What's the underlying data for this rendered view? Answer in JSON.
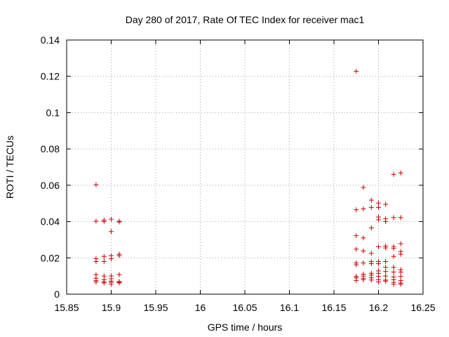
{
  "chart_data": {
    "type": "scatter",
    "title": "Day 280 of 2017, Rate Of TEC Index for receiver mac1",
    "xlabel": "GPS time / hours",
    "ylabel": "ROTI / TECUs",
    "xlim": [
      15.85,
      16.25
    ],
    "ylim": [
      0,
      0.14
    ],
    "x_ticks": [
      "15.85",
      "15.9",
      "15.95",
      "16",
      "16.05",
      "16.1",
      "16.15",
      "16.2",
      "16.25"
    ],
    "y_ticks": [
      "0",
      "0.02",
      "0.04",
      "0.06",
      "0.08",
      "0.1",
      "0.12",
      "0.14"
    ],
    "grid": true,
    "marker": "+",
    "color": "#cc0000",
    "series": [
      {
        "name": "ROTI",
        "points": [
          [
            15.883,
            0.0603
          ],
          [
            15.883,
            0.0402
          ],
          [
            15.883,
            0.0195
          ],
          [
            15.883,
            0.018
          ],
          [
            15.883,
            0.0107
          ],
          [
            15.883,
            0.0088
          ],
          [
            15.883,
            0.0075
          ],
          [
            15.883,
            0.0067
          ],
          [
            15.892,
            0.0408
          ],
          [
            15.892,
            0.04
          ],
          [
            15.892,
            0.0208
          ],
          [
            15.892,
            0.018
          ],
          [
            15.892,
            0.01
          ],
          [
            15.892,
            0.008
          ],
          [
            15.892,
            0.0068
          ],
          [
            15.892,
            0.0062
          ],
          [
            15.9,
            0.0413
          ],
          [
            15.9,
            0.0345
          ],
          [
            15.9,
            0.0212
          ],
          [
            15.9,
            0.0195
          ],
          [
            15.9,
            0.01
          ],
          [
            15.9,
            0.0085
          ],
          [
            15.9,
            0.0072
          ],
          [
            15.9,
            0.0065
          ],
          [
            15.9,
            0.0055
          ],
          [
            15.909,
            0.0402
          ],
          [
            15.909,
            0.0398
          ],
          [
            15.909,
            0.022
          ],
          [
            15.909,
            0.0212
          ],
          [
            15.909,
            0.0108
          ],
          [
            15.909,
            0.007
          ],
          [
            15.909,
            0.0065
          ],
          [
            15.909,
            0.0062
          ],
          [
            16.175,
            0.1228
          ],
          [
            16.175,
            0.0465
          ],
          [
            16.175,
            0.0322
          ],
          [
            16.175,
            0.0248
          ],
          [
            16.175,
            0.0172
          ],
          [
            16.175,
            0.0162
          ],
          [
            16.175,
            0.0098
          ],
          [
            16.175,
            0.009
          ],
          [
            16.175,
            0.0075
          ],
          [
            16.183,
            0.0588
          ],
          [
            16.183,
            0.047
          ],
          [
            16.183,
            0.031
          ],
          [
            16.183,
            0.0238
          ],
          [
            16.183,
            0.0172
          ],
          [
            16.183,
            0.011
          ],
          [
            16.183,
            0.01
          ],
          [
            16.183,
            0.0088
          ],
          [
            16.183,
            0.008
          ],
          [
            16.192,
            0.0518
          ],
          [
            16.192,
            0.0478
          ],
          [
            16.192,
            0.0365
          ],
          [
            16.192,
            0.0225
          ],
          [
            16.192,
            0.018
          ],
          [
            16.192,
            0.0168
          ],
          [
            16.192,
            0.0115
          ],
          [
            16.192,
            0.0105
          ],
          [
            16.192,
            0.009
          ],
          [
            16.192,
            0.0078
          ],
          [
            16.2,
            0.0502
          ],
          [
            16.2,
            0.0478
          ],
          [
            16.2,
            0.0425
          ],
          [
            16.2,
            0.041
          ],
          [
            16.2,
            0.0262
          ],
          [
            16.2,
            0.018
          ],
          [
            16.2,
            0.0168
          ],
          [
            16.2,
            0.0128
          ],
          [
            16.2,
            0.0115
          ],
          [
            16.2,
            0.0098
          ],
          [
            16.2,
            0.008
          ],
          [
            16.2,
            0.0068
          ],
          [
            16.208,
            0.0495
          ],
          [
            16.208,
            0.0415
          ],
          [
            16.208,
            0.04
          ],
          [
            16.208,
            0.0265
          ],
          [
            16.208,
            0.0255
          ],
          [
            16.208,
            0.018
          ],
          [
            16.208,
            0.0148
          ],
          [
            16.208,
            0.0125
          ],
          [
            16.208,
            0.01
          ],
          [
            16.208,
            0.0078
          ],
          [
            16.208,
            0.0072
          ],
          [
            16.217,
            0.066
          ],
          [
            16.217,
            0.0422
          ],
          [
            16.217,
            0.0262
          ],
          [
            16.217,
            0.0252
          ],
          [
            16.217,
            0.0208
          ],
          [
            16.217,
            0.0148
          ],
          [
            16.217,
            0.0122
          ],
          [
            16.217,
            0.0095
          ],
          [
            16.217,
            0.008
          ],
          [
            16.217,
            0.0065
          ],
          [
            16.217,
            0.0055
          ],
          [
            16.225,
            0.0668
          ],
          [
            16.225,
            0.0422
          ],
          [
            16.225,
            0.0278
          ],
          [
            16.225,
            0.0235
          ],
          [
            16.225,
            0.022
          ],
          [
            16.225,
            0.0135
          ],
          [
            16.225,
            0.0122
          ],
          [
            16.225,
            0.0098
          ],
          [
            16.225,
            0.0075
          ],
          [
            16.225,
            0.0062
          ],
          [
            16.225,
            0.0055
          ]
        ]
      }
    ]
  }
}
